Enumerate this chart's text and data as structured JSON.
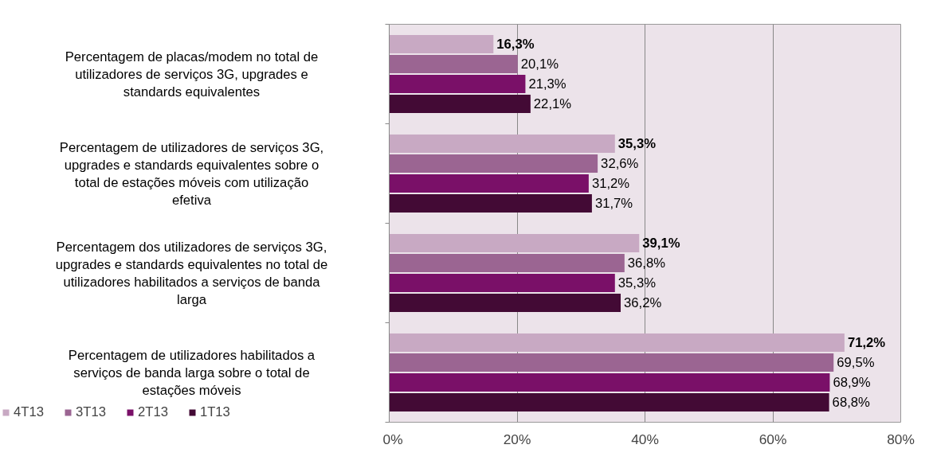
{
  "chart_data": {
    "type": "bar",
    "orientation": "horizontal",
    "categories": [
      "Percentagem de placas/modem no total de utilizadores de serviços 3G, upgrades e standards equivalentes",
      "Percentagem de utilizadores de serviços 3G, upgrades e standards equivalentes sobre o total de estações móveis com utilização efetiva",
      "Percentagem dos utilizadores de serviços 3G, upgrades e standards equivalentes no total de utilizadores habilitados a serviços de banda larga",
      "Percentagem de utilizadores habilitados a serviços de banda larga sobre o total de estações móveis"
    ],
    "series": [
      {
        "name": "4T13",
        "color": "#c8a9c3",
        "values": [
          16.3,
          35.3,
          39.1,
          71.2
        ],
        "value_labels": [
          "16,3%",
          "35,3%",
          "39,1%",
          "71,2%"
        ]
      },
      {
        "name": "3T13",
        "color": "#9b6592",
        "values": [
          20.1,
          32.6,
          36.8,
          69.5
        ],
        "value_labels": [
          "20,1%",
          "32,6%",
          "36,8%",
          "69,5%"
        ]
      },
      {
        "name": "2T13",
        "color": "#7a1068",
        "values": [
          21.3,
          31.2,
          35.3,
          68.9
        ],
        "value_labels": [
          "21,3%",
          "31,2%",
          "35,3%",
          "68,9%"
        ]
      },
      {
        "name": "1T13",
        "color": "#430a35",
        "values": [
          22.1,
          31.7,
          36.2,
          68.8
        ],
        "value_labels": [
          "22,1%",
          "31,7%",
          "36,2%",
          "68,8%"
        ]
      }
    ],
    "xlim": [
      0,
      80
    ],
    "xticks": [
      {
        "value": 0,
        "label": "0%"
      },
      {
        "value": 20,
        "label": "20%"
      },
      {
        "value": 40,
        "label": "40%"
      },
      {
        "value": 60,
        "label": "60%"
      },
      {
        "value": 80,
        "label": "80%"
      }
    ],
    "grid": "x",
    "legend": "bottom left"
  }
}
